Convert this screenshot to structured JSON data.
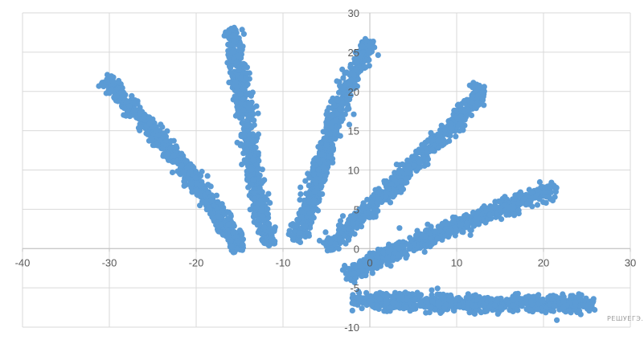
{
  "watermark": "РЕШУЕГЭ.РФ",
  "chart_data": {
    "type": "scatter",
    "title": "",
    "xlabel": "",
    "ylabel": "",
    "xlim": [
      -40,
      30
    ],
    "ylim": [
      -10,
      30
    ],
    "x_ticks": [
      "-40",
      "-30",
      "-20",
      "-10",
      "0",
      "10",
      "20",
      "30"
    ],
    "y_ticks": [
      "-10",
      "-5",
      "0",
      "5",
      "10",
      "15",
      "20",
      "25",
      "30"
    ],
    "grid": true,
    "legend": "none",
    "marker_color": "#5b9bd5",
    "series": [
      {
        "x_range": [
          -30.5,
          -14.8
        ],
        "y_range": [
          21.5,
          -0.5
        ],
        "description_points": [
          [
            -30.5,
            21.5
          ],
          [
            -27,
            17.5
          ],
          [
            -23,
            12.5
          ],
          [
            -19.5,
            7.5
          ],
          [
            -16.5,
            3
          ],
          [
            -14.8,
            -0.2
          ]
        ]
      },
      {
        "x_range": [
          -16,
          -11.5
        ],
        "y_range": [
          28,
          0.5
        ],
        "description_points": [
          [
            -16,
            28
          ],
          [
            -15,
            22
          ],
          [
            -14,
            14
          ],
          [
            -13,
            7
          ],
          [
            -12,
            2
          ],
          [
            -11.5,
            0.5
          ]
        ]
      },
      {
        "x_range": [
          -8.5,
          0
        ],
        "y_range": [
          1,
          26.5
        ],
        "description_points": [
          [
            -8.5,
            1
          ],
          [
            -6.5,
            7
          ],
          [
            -5,
            13
          ],
          [
            -3.5,
            18
          ],
          [
            -1.5,
            23
          ],
          [
            0,
            26.5
          ]
        ]
      },
      {
        "x_range": [
          -5,
          13
        ],
        "y_range": [
          0,
          20.5
        ],
        "description_points": [
          [
            -5,
            0
          ],
          [
            -1,
            4
          ],
          [
            3,
            8.5
          ],
          [
            7,
            13
          ],
          [
            11,
            17.5
          ],
          [
            13,
            20.5
          ]
        ]
      },
      {
        "x_range": [
          -2.8,
          21.5
        ],
        "y_range": [
          -3.5,
          8
        ],
        "description_points": [
          [
            -2.8,
            -3.5
          ],
          [
            2,
            -0.8
          ],
          [
            7,
            1.5
          ],
          [
            12,
            3.7
          ],
          [
            17,
            5.8
          ],
          [
            21.5,
            7.8
          ]
        ]
      },
      {
        "x_range": [
          -2,
          26
        ],
        "y_range": [
          -6.5,
          -7.2
        ],
        "description_points": [
          [
            -2,
            -6.6
          ],
          [
            5,
            -6.8
          ],
          [
            12,
            -7
          ],
          [
            19,
            -7
          ],
          [
            26,
            -7.2
          ]
        ]
      }
    ]
  }
}
